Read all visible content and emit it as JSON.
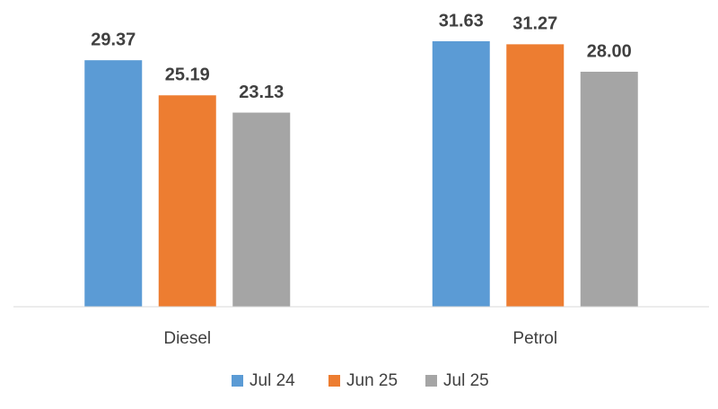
{
  "chart_data": {
    "type": "bar",
    "categories": [
      "Diesel",
      "Petrol"
    ],
    "series": [
      {
        "name": "Jul 24",
        "color": "#5b9bd5",
        "values": [
          29.37,
          31.63
        ]
      },
      {
        "name": "Jun 25",
        "color": "#ed7d31",
        "values": [
          25.19,
          31.27
        ]
      },
      {
        "name": "Jul 25",
        "color": "#a5a5a5",
        "values": [
          23.13,
          28.0
        ],
        "value_labels": [
          "23.13",
          "28.00"
        ]
      }
    ],
    "legend": "bottom"
  }
}
